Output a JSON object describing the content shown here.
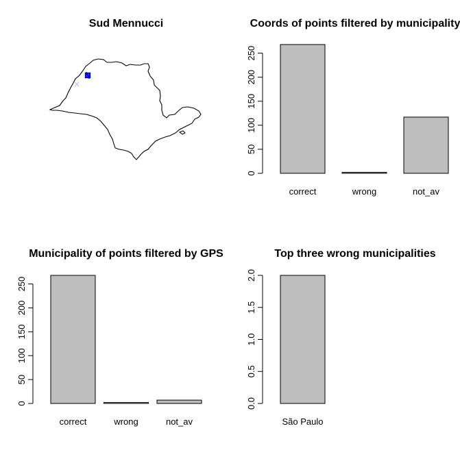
{
  "panels": {
    "map": {
      "title": "Sud Mennucci",
      "colors": {
        "outline": "#000000",
        "points": "#0000CD",
        "stray": "#bfbfe6"
      }
    }
  },
  "chart_data": [
    {
      "type": "bar",
      "title": "Coords of points filtered by municipality",
      "categories": [
        "correct",
        "wrong",
        "not_av"
      ],
      "values": [
        268,
        2,
        117
      ],
      "ylim": [
        0,
        268
      ],
      "yticks": [
        0,
        50,
        100,
        150,
        200,
        250
      ],
      "xlabel": "",
      "ylabel": "",
      "bar_color": "#bebebe"
    },
    {
      "type": "bar",
      "title": "Municipality of points filtered by GPS",
      "categories": [
        "correct",
        "wrong",
        "not_av"
      ],
      "values": [
        268,
        2,
        7
      ],
      "ylim": [
        0,
        268
      ],
      "yticks": [
        0,
        50,
        100,
        150,
        200,
        250
      ],
      "xlabel": "",
      "ylabel": "",
      "bar_color": "#bebebe"
    },
    {
      "type": "bar",
      "title": "Top three wrong municipalities",
      "categories": [
        "São Paulo"
      ],
      "values": [
        2
      ],
      "ylim": [
        0,
        2
      ],
      "yticks": [
        0.0,
        0.5,
        1.0,
        1.5,
        2.0
      ],
      "xlabel": "",
      "ylabel": "",
      "bar_color": "#bebebe"
    }
  ]
}
